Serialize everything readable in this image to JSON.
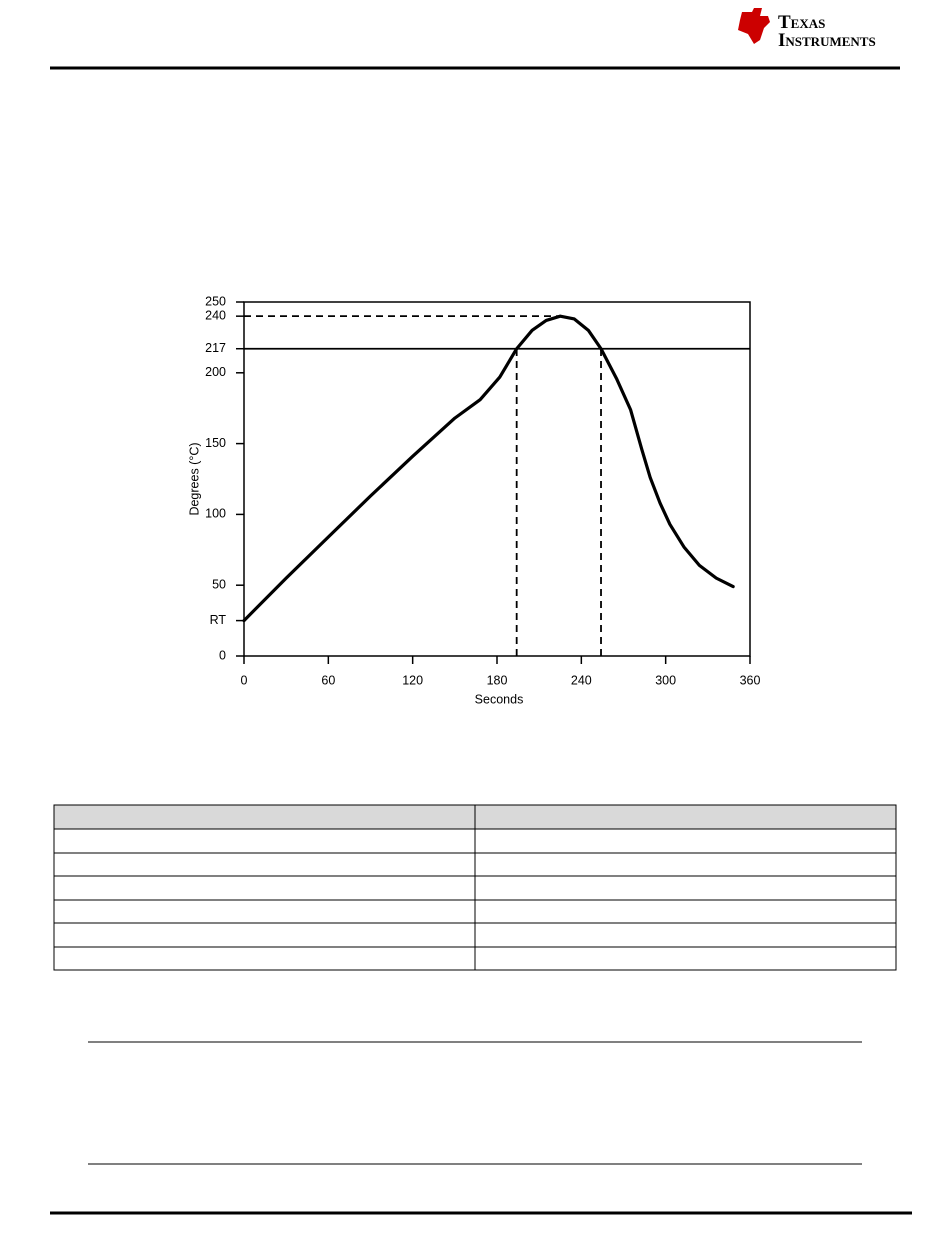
{
  "header": {
    "logo": [
      "Texas",
      "Instruments"
    ]
  },
  "chart_data": {
    "type": "line",
    "x": [
      0,
      30,
      61,
      90,
      120,
      150,
      168,
      182,
      194,
      205,
      215,
      225,
      235,
      245,
      254,
      265,
      275,
      283,
      289,
      296,
      303,
      313,
      324,
      336,
      348
    ],
    "values": [
      25,
      55,
      85,
      113,
      141,
      168,
      181,
      197,
      217,
      230,
      237,
      240,
      238,
      230,
      217,
      196,
      174,
      146,
      126,
      108,
      93,
      77,
      64,
      55,
      49
    ],
    "color": "#000000",
    "xlim": [
      0,
      360
    ],
    "xticks": [
      0,
      60,
      120,
      180,
      240,
      300,
      360
    ],
    "ylim": [
      0,
      250
    ],
    "yticks": [
      0,
      {
        "value": 25,
        "label": "RT"
      },
      50,
      100,
      150,
      200,
      217,
      240,
      250
    ],
    "xlabel": "Seconds",
    "ylabel": "Degrees (°C)",
    "reference_lines": [
      {
        "axis": "y",
        "value": 217,
        "style": "solid"
      },
      {
        "axis": "y",
        "value": 240,
        "style": "dashed",
        "to": 225
      },
      {
        "axis": "x",
        "value": 194,
        "style": "dashed",
        "to": 217
      },
      {
        "axis": "x",
        "value": 254,
        "style": "dashed",
        "to": 217
      }
    ]
  }
}
